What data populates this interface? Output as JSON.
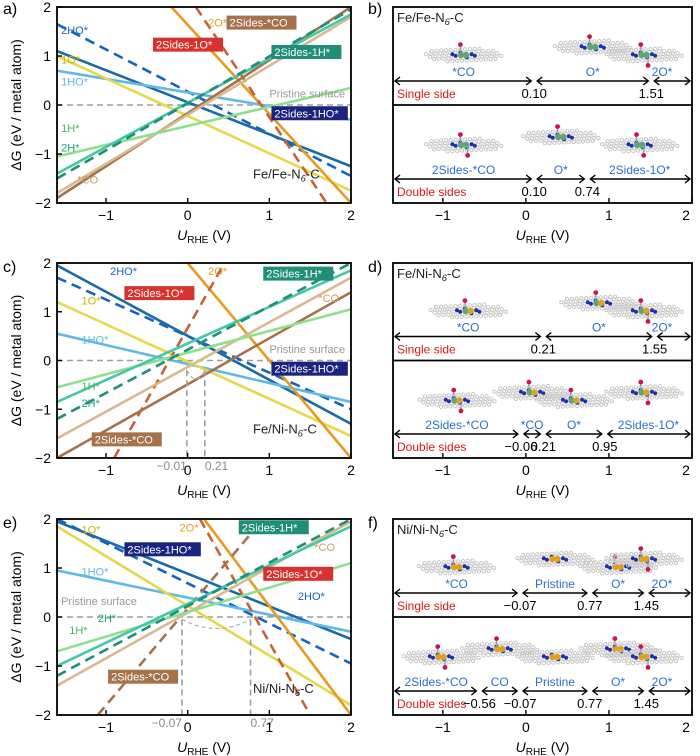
{
  "chart_data": [
    {
      "type": "line",
      "panel": "a)",
      "xlabel_main": "U",
      "xlabel_sub": "RHE",
      "xlabel_unit": "(V)",
      "ylabel": "ΔG (eV / metal atom)",
      "xlim": [
        -1.6,
        2.0
      ],
      "ylim": [
        -2,
        2
      ],
      "xticks": [
        "−1",
        "0",
        "1",
        "2"
      ],
      "yticks": [
        "2",
        "1",
        "0",
        "−1",
        "−2"
      ],
      "system_label": "Fe/Fe-N6-C",
      "series": [
        {
          "name": "2HO*",
          "color": "#1565c0",
          "dash": true,
          "x": [
            -1.6,
            2.0
          ],
          "y": [
            1.65,
            -1.45
          ]
        },
        {
          "name": "2Sides-1HO*",
          "color": "#1a6aa8",
          "dash": false,
          "x": [
            -1.6,
            2.0
          ],
          "y": [
            1.1,
            -1.25
          ]
        },
        {
          "name": "1HO*",
          "color": "#5fb8e6",
          "dash": false,
          "x": [
            -1.6,
            2.0
          ],
          "y": [
            0.7,
            -0.3
          ]
        },
        {
          "name": "1O*",
          "color": "#e5d84a",
          "dash": false,
          "x": [
            -1.6,
            2.0
          ],
          "y": [
            1.0,
            -1.75
          ]
        },
        {
          "name": "2O*",
          "color": "#e89a1e",
          "dash": false,
          "x": [
            -0.2,
            2.0
          ],
          "y": [
            2.0,
            -2.0
          ]
        },
        {
          "name": "2Sides-1O*",
          "color": "#c8603a",
          "dash": true,
          "x": [
            0.1,
            1.7
          ],
          "y": [
            2.0,
            -2.0
          ]
        },
        {
          "name": "2Sides-*CO",
          "color": "#a5724c",
          "dash": false,
          "x": [
            -1.6,
            2.0
          ],
          "y": [
            -1.9,
            2.0
          ]
        },
        {
          "name": "*CO",
          "color": "#d8b990",
          "dash": false,
          "x": [
            -1.6,
            2.0
          ],
          "y": [
            -1.8,
            1.8
          ]
        },
        {
          "name": "1H*",
          "color": "#8ee08e",
          "dash": false,
          "x": [
            -1.6,
            2.0
          ],
          "y": [
            -1.05,
            0.35
          ]
        },
        {
          "name": "2H*",
          "color": "#44c8a8",
          "dash": false,
          "x": [
            -1.6,
            2.0
          ],
          "y": [
            -1.4,
            1.85
          ]
        },
        {
          "name": "2Sides-1H*",
          "color": "#1f8f78",
          "dash": true,
          "x": [
            -1.6,
            2.0
          ],
          "y": [
            -1.5,
            1.95
          ]
        }
      ],
      "labels": [
        {
          "text": "2HO*",
          "color": "#1565c0",
          "x": -1.55,
          "y": 1.45,
          "box": false
        },
        {
          "text": "1O*",
          "color": "#c8b400",
          "x": -1.55,
          "y": 0.85,
          "box": false
        },
        {
          "text": "1HO*",
          "color": "#5fb8e6",
          "x": -1.55,
          "y": 0.4,
          "box": false
        },
        {
          "text": "1H*",
          "color": "#44b866",
          "x": -1.55,
          "y": -0.55,
          "box": false
        },
        {
          "text": "2H*",
          "color": "#1f9f80",
          "x": -1.55,
          "y": -0.95,
          "box": false
        },
        {
          "text": "*CO",
          "color": "#c8a06a",
          "x": -1.35,
          "y": -1.6,
          "box": false
        },
        {
          "text": "2O*",
          "color": "#e89a1e",
          "x": 0.25,
          "y": 1.6,
          "box": false
        },
        {
          "text": "2Sides-*CO",
          "color": "#a5724c",
          "x": 0.5,
          "y": 1.6,
          "box": true
        },
        {
          "text": "2Sides-1O*",
          "color": "#d7322e",
          "x": -0.4,
          "y": 1.15,
          "box": true
        },
        {
          "text": "2Sides-1H*",
          "color": "#1f8f78",
          "x": 1.05,
          "y": 1.0,
          "box": true
        },
        {
          "text": "Pristine surface",
          "color": "#999999",
          "x": 1.0,
          "y": 0.15,
          "box": false
        },
        {
          "text": "2Sides-1HO*",
          "color": "#1a237e",
          "x": 1.05,
          "y": -0.25,
          "box": true
        }
      ],
      "pristine_y": 0,
      "markers": []
    },
    {
      "type": "line",
      "panel": "c)",
      "xlabel_main": "U",
      "xlabel_sub": "RHE",
      "xlabel_unit": "(V)",
      "ylabel": "ΔG (eV / metal atom)",
      "xlim": [
        -1.6,
        2.0
      ],
      "ylim": [
        -2,
        2
      ],
      "xticks": [
        "−1",
        "0",
        "1",
        "2"
      ],
      "yticks": [
        "2",
        "1",
        "0",
        "−1",
        "−2"
      ],
      "system_label": "Fe/Ni-N6-C",
      "series": [
        {
          "name": "2HO*",
          "color": "#1565c0",
          "dash": true,
          "x": [
            -1.6,
            2.0
          ],
          "y": [
            1.7,
            -1.0
          ]
        },
        {
          "name": "2Sides-1HO*",
          "color": "#1a6aa8",
          "dash": false,
          "x": [
            -1.6,
            2.0
          ],
          "y": [
            1.95,
            -1.3
          ]
        },
        {
          "name": "1HO*",
          "color": "#5fb8e6",
          "dash": false,
          "x": [
            -1.6,
            2.0
          ],
          "y": [
            0.55,
            -0.85
          ]
        },
        {
          "name": "1O*",
          "color": "#e5d84a",
          "dash": false,
          "x": [
            -1.6,
            2.0
          ],
          "y": [
            1.2,
            -1.55
          ]
        },
        {
          "name": "2O*",
          "color": "#e89a1e",
          "dash": false,
          "x": [
            0.0,
            2.0
          ],
          "y": [
            2.0,
            -2.0
          ]
        },
        {
          "name": "2Sides-1O*",
          "color": "#c8603a",
          "dash": true,
          "x": [
            -0.9,
            0.45
          ],
          "y": [
            -2.0,
            2.0
          ]
        },
        {
          "name": "2Sides-*CO",
          "color": "#a5724c",
          "dash": false,
          "x": [
            -1.6,
            2.0
          ],
          "y": [
            -2.0,
            1.4
          ]
        },
        {
          "name": "*CO",
          "color": "#d8b990",
          "dash": false,
          "x": [
            -1.6,
            2.0
          ],
          "y": [
            -1.6,
            1.7
          ]
        },
        {
          "name": "1H*",
          "color": "#8ee08e",
          "dash": false,
          "x": [
            -1.6,
            2.0
          ],
          "y": [
            -0.55,
            1.05
          ]
        },
        {
          "name": "2H*",
          "color": "#44c8a8",
          "dash": false,
          "x": [
            -1.6,
            2.0
          ],
          "y": [
            -0.85,
            1.85
          ]
        },
        {
          "name": "2Sides-1H*",
          "color": "#1f8f78",
          "dash": true,
          "x": [
            -1.6,
            2.0
          ],
          "y": [
            -1.2,
            2.0
          ]
        }
      ],
      "labels": [
        {
          "text": "2HO*",
          "color": "#1565c0",
          "x": -0.95,
          "y": 1.75,
          "box": false
        },
        {
          "text": "2O*",
          "color": "#e89a1e",
          "x": 0.25,
          "y": 1.75,
          "box": false
        },
        {
          "text": "2Sides-1H*",
          "color": "#1f8f78",
          "x": 0.95,
          "y": 1.7,
          "box": true
        },
        {
          "text": "1O*",
          "color": "#c8b400",
          "x": -1.3,
          "y": 1.15,
          "box": false
        },
        {
          "text": "2Sides-1O*",
          "color": "#d7322e",
          "x": -0.75,
          "y": 1.3,
          "box": true
        },
        {
          "text": "*CO",
          "color": "#c8a06a",
          "x": 1.6,
          "y": 1.2,
          "box": false
        },
        {
          "text": "1HO*",
          "color": "#5fb8e6",
          "x": -1.3,
          "y": 0.35,
          "box": false
        },
        {
          "text": "Pristine surface",
          "color": "#999999",
          "x": 1.0,
          "y": 0.15,
          "box": false
        },
        {
          "text": "2Sides-1HO*",
          "color": "#1a237e",
          "x": 1.05,
          "y": -0.25,
          "box": true
        },
        {
          "text": "1H*",
          "color": "#44b866",
          "x": -1.3,
          "y": -0.6,
          "box": false
        },
        {
          "text": "2H*",
          "color": "#1f9f80",
          "x": -1.3,
          "y": -0.95,
          "box": false
        },
        {
          "text": "2Sides-*CO",
          "color": "#a5724c",
          "x": -1.15,
          "y": -1.7,
          "box": true
        }
      ],
      "pristine_y": 0,
      "markers": [
        {
          "value": -0.01,
          "label": "−0.01",
          "y": -0.2
        },
        {
          "value": 0.21,
          "label": "0.21",
          "y": -0.2
        }
      ]
    },
    {
      "type": "line",
      "panel": "e)",
      "xlabel_main": "U",
      "xlabel_sub": "RHE",
      "xlabel_unit": "(V)",
      "ylabel": "ΔG (eV / metal atom)",
      "xlim": [
        -1.6,
        2.0
      ],
      "ylim": [
        -2,
        2
      ],
      "xticks": [
        "−1",
        "0",
        "1",
        "2"
      ],
      "yticks": [
        "2",
        "1",
        "0",
        "−1",
        "−2"
      ],
      "system_label": "Ni/Ni-N6-C",
      "series": [
        {
          "name": "2HO*",
          "color": "#1565c0",
          "dash": true,
          "x": [
            -1.6,
            2.0
          ],
          "y": [
            2.0,
            -0.95
          ]
        },
        {
          "name": "2Sides-1HO*",
          "color": "#1a6aa8",
          "dash": false,
          "x": [
            -1.6,
            2.0
          ],
          "y": [
            1.95,
            -0.45
          ]
        },
        {
          "name": "1HO*",
          "color": "#5fb8e6",
          "dash": false,
          "x": [
            -1.6,
            2.0
          ],
          "y": [
            0.95,
            -0.3
          ]
        },
        {
          "name": "1O*",
          "color": "#e5d84a",
          "dash": false,
          "x": [
            -1.6,
            2.0
          ],
          "y": [
            1.85,
            -1.8
          ]
        },
        {
          "name": "2O*",
          "color": "#e89a1e",
          "dash": false,
          "x": [
            0.2,
            2.0
          ],
          "y": [
            2.0,
            -2.0
          ]
        },
        {
          "name": "2Sides-1O*",
          "color": "#c8603a",
          "dash": true,
          "x": [
            0.15,
            1.5
          ],
          "y": [
            2.0,
            -2.0
          ]
        },
        {
          "name": "2Sides-*CO",
          "color": "#a5724c",
          "dash": true,
          "x": [
            -1.1,
            0.9
          ],
          "y": [
            -2.0,
            1.95
          ]
        },
        {
          "name": "*CO",
          "color": "#d8b990",
          "dash": false,
          "x": [
            -1.6,
            2.0
          ],
          "y": [
            -1.4,
            1.95
          ]
        },
        {
          "name": "1H*",
          "color": "#8ee08e",
          "dash": false,
          "x": [
            -1.6,
            2.0
          ],
          "y": [
            -0.7,
            1.1
          ]
        },
        {
          "name": "2H*",
          "color": "#44c8a8",
          "dash": false,
          "x": [
            -1.6,
            2.0
          ],
          "y": [
            -1.0,
            1.85
          ]
        },
        {
          "name": "2Sides-1H*",
          "color": "#1f8f78",
          "dash": true,
          "x": [
            -1.6,
            2.0
          ],
          "y": [
            -1.2,
            2.0
          ]
        }
      ],
      "labels": [
        {
          "text": "1O*",
          "color": "#c8b400",
          "x": -1.3,
          "y": 1.7,
          "box": false
        },
        {
          "text": "2O*",
          "color": "#e89a1e",
          "x": -0.1,
          "y": 1.75,
          "box": false
        },
        {
          "text": "2Sides-1H*",
          "color": "#1f8f78",
          "x": 0.65,
          "y": 1.75,
          "box": true
        },
        {
          "text": "*CO",
          "color": "#c8a06a",
          "x": 1.55,
          "y": 1.35,
          "box": false
        },
        {
          "text": "2Sides-1HO*",
          "color": "#1a237e",
          "x": -0.75,
          "y": 1.3,
          "box": true
        },
        {
          "text": "1HO*",
          "color": "#5fb8e6",
          "x": -1.3,
          "y": 0.85,
          "box": false
        },
        {
          "text": "2Sides-1O*",
          "color": "#d7322e",
          "x": 0.95,
          "y": 0.8,
          "box": true
        },
        {
          "text": "2HO*",
          "color": "#1565c0",
          "x": 1.35,
          "y": 0.35,
          "box": false
        },
        {
          "text": "Pristine surface",
          "color": "#999999",
          "x": -1.55,
          "y": 0.25,
          "box": false
        },
        {
          "text": "2H*",
          "color": "#1f9f80",
          "x": -1.1,
          "y": -0.1,
          "box": false
        },
        {
          "text": "1H*",
          "color": "#44b866",
          "x": -1.45,
          "y": -0.35,
          "box": false
        },
        {
          "text": "2Sides-*CO",
          "color": "#a5724c",
          "x": -0.95,
          "y": -1.3,
          "box": true
        }
      ],
      "pristine_y": 0,
      "markers": [
        {
          "value": -0.07,
          "label": "−0.07",
          "y": -0.05
        },
        {
          "value": 0.77,
          "label": "0.77",
          "y": -0.05
        }
      ]
    }
  ],
  "diagrams": [
    {
      "panel": "b)",
      "title": "Fe/Fe-N6-C",
      "xticks": [
        "−1",
        "0",
        "1",
        "2"
      ],
      "xlabel_main": "U",
      "xlabel_sub": "RHE",
      "xlabel_unit": "(V)",
      "single": {
        "label": "Single side",
        "regions": [
          "*CO",
          "O*",
          "2O*"
        ],
        "values": [
          "0.10",
          "1.51"
        ],
        "breaks": [
          0.1,
          1.51
        ]
      },
      "double": {
        "label": "Double sides",
        "regions": [
          "2Sides-*CO",
          "O*",
          "2Sides-1O*"
        ],
        "values": [
          "0.10",
          "0.74"
        ],
        "breaks": [
          0.1,
          0.74
        ]
      }
    },
    {
      "panel": "d)",
      "title": "Fe/Ni-N6-C",
      "xticks": [
        "−1",
        "0",
        "1",
        "2"
      ],
      "xlabel_main": "U",
      "xlabel_sub": "RHE",
      "xlabel_unit": "(V)",
      "single": {
        "label": "Single side",
        "regions": [
          "*CO",
          "O*",
          "2O*"
        ],
        "values": [
          "0.21",
          "1.55"
        ],
        "breaks": [
          0.21,
          1.55
        ]
      },
      "double": {
        "label": "Double sides",
        "regions": [
          "2Sides-*CO",
          "*CO",
          "O*",
          "2Sides-1O*"
        ],
        "values": [
          "−0.06",
          "0.21",
          "0.95"
        ],
        "breaks": [
          -0.06,
          0.21,
          0.95
        ]
      }
    },
    {
      "panel": "f)",
      "title": "Ni/Ni-N6-C",
      "xticks": [
        "−1",
        "0",
        "1",
        "2"
      ],
      "xlabel_main": "U",
      "xlabel_sub": "RHE",
      "xlabel_unit": "(V)",
      "single": {
        "label": "Single side",
        "regions": [
          "*CO",
          "Pristine",
          "O*",
          "2O*"
        ],
        "values": [
          "−0.07",
          "0.77",
          "1.45"
        ],
        "breaks": [
          -0.07,
          0.77,
          1.45
        ]
      },
      "double": {
        "label": "Double sides",
        "regions": [
          "2Sides-*CO",
          "CO",
          "Pristine",
          "O*",
          "2O*"
        ],
        "values": [
          "−0.56",
          "−0.07",
          "0.77",
          "1.45"
        ],
        "breaks": [
          -0.56,
          -0.07,
          0.77,
          1.45
        ]
      }
    }
  ],
  "colors": {
    "axis": "#000000",
    "region_label": "#2a6fc9",
    "side_label": "#d7191c",
    "pristine_line": "#9e9e9e",
    "atom_carbon": "#c8c8c8",
    "atom_nitrogen": "#1a2fb0",
    "atom_fe": "#5aa878",
    "atom_ni": "#e0a020",
    "atom_oxygen": "#d01050"
  }
}
